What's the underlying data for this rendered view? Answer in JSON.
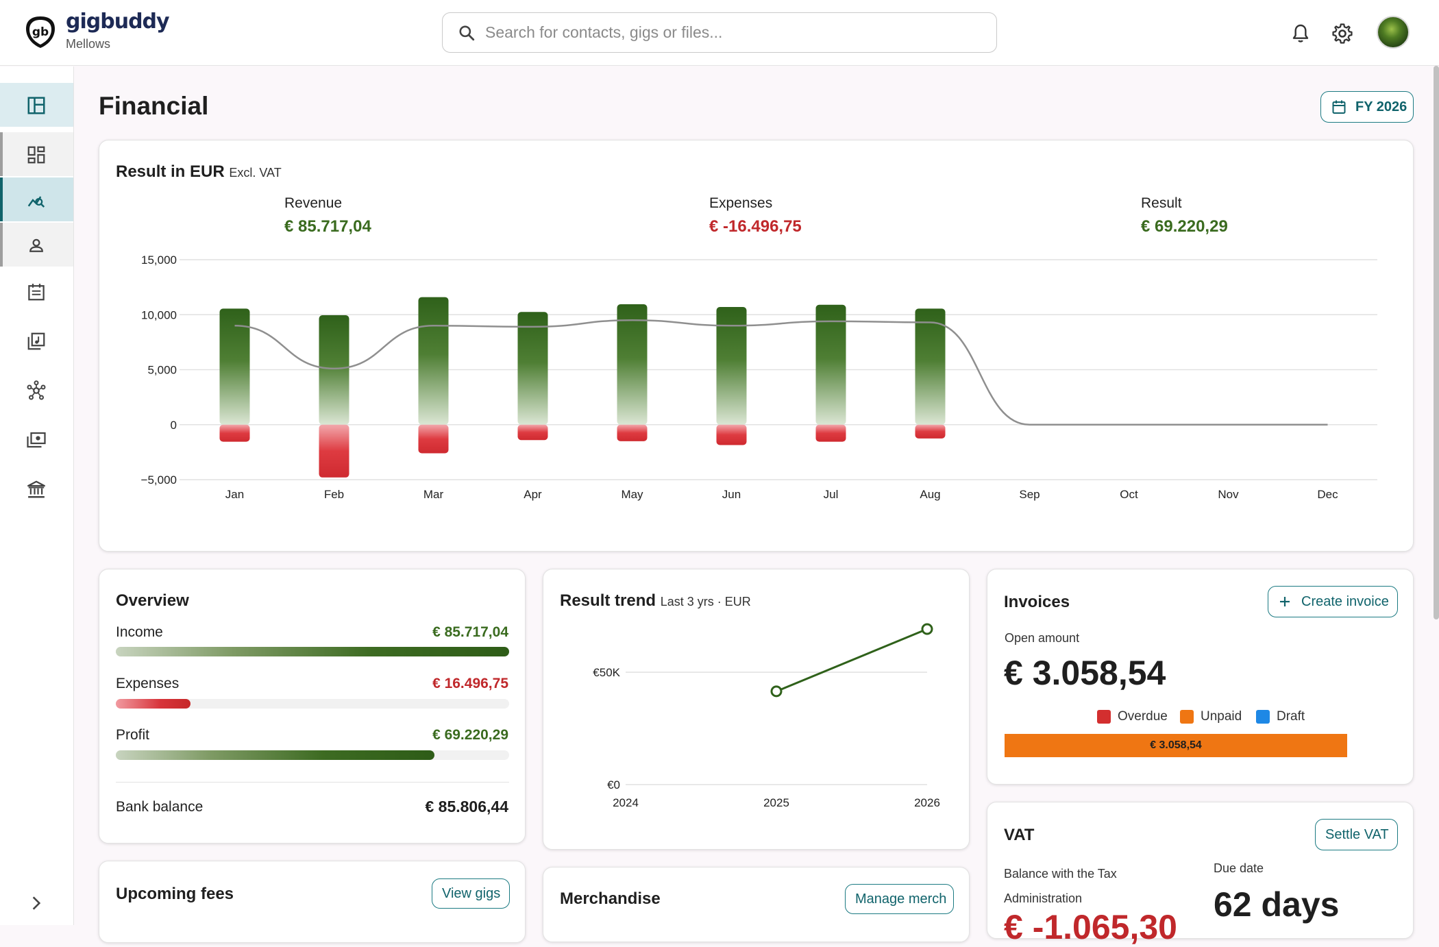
{
  "app": {
    "brand": "gigbuddy",
    "org": "Mellows"
  },
  "search": {
    "placeholder": "Search for contacts, gigs or files..."
  },
  "header": {
    "icons": [
      "bell-icon",
      "gear-icon",
      "avatar"
    ]
  },
  "sidebar": {
    "items": [
      "dashboard-icon",
      "widgets-icon",
      "financial-icon",
      "contacts-icon",
      "calendar-icon",
      "music-library-icon",
      "network-icon",
      "merch-icon",
      "bank-icon"
    ]
  },
  "page": {
    "title": "Financial",
    "fy_label": "FY 2026"
  },
  "result": {
    "title": "Result in EUR",
    "subtitle": "Excl. VAT",
    "revenue_label": "Revenue",
    "revenue_value": "€ 85.717,04",
    "expenses_label": "Expenses",
    "expenses_value": "€ -16.496,75",
    "result_label": "Result",
    "result_value": "€ 69.220,29"
  },
  "chart_data": [
    {
      "type": "bar",
      "title": "Result in EUR",
      "categories": [
        "Jan",
        "Feb",
        "Mar",
        "Apr",
        "May",
        "Jun",
        "Jul",
        "Aug",
        "Sep",
        "Oct",
        "Nov",
        "Dec"
      ],
      "y_ticks": [
        15000,
        10000,
        5000,
        0,
        -5000
      ],
      "y_tick_labels": [
        "15,000",
        "10,000",
        "5,000",
        "0",
        "−5,000"
      ],
      "ylim": [
        -5000,
        15000
      ],
      "grid": true,
      "series": [
        {
          "name": "Revenue",
          "values": [
            10550,
            9950,
            11600,
            10250,
            10950,
            10700,
            10900,
            10550,
            0,
            0,
            0,
            0
          ]
        },
        {
          "name": "Expenses",
          "values": [
            -1550,
            -4800,
            -2600,
            -1400,
            -1500,
            -1850,
            -1550,
            -1250,
            0,
            0,
            0,
            0
          ]
        },
        {
          "name": "Result",
          "type": "line",
          "values": [
            9000,
            5100,
            9000,
            8900,
            9500,
            9000,
            9400,
            9300,
            0,
            0,
            0,
            0
          ]
        }
      ]
    },
    {
      "type": "line",
      "title": "Result trend",
      "subtitle": "Last 3 yrs · EUR",
      "categories": [
        "2024",
        "2025",
        "2026"
      ],
      "y_ticks": [
        0,
        50000
      ],
      "y_tick_labels": [
        "€0",
        "€50K"
      ],
      "ylim": [
        0,
        60000
      ],
      "series": [
        {
          "values": [
            null,
            41500,
            69220.29
          ]
        }
      ]
    }
  ],
  "overview": {
    "title": "Overview",
    "income_label": "Income",
    "income_value": "€ 85.717,04",
    "income_fraction": 1.0,
    "expenses_label": "Expenses",
    "expenses_value": "€ 16.496,75",
    "expenses_fraction": 0.19,
    "profit_label": "Profit",
    "profit_value": "€ 69.220,29",
    "profit_fraction": 0.81,
    "bank_label": "Bank balance",
    "bank_value": "€ 85.806,44"
  },
  "trend": {
    "title": "Result trend",
    "subtitle": "Last 3 yrs · EUR"
  },
  "invoices": {
    "title": "Invoices",
    "create_label": "Create invoice",
    "open_label": "Open amount",
    "open_value": "€ 3.058,54",
    "legend": [
      {
        "label": "Overdue",
        "color": "#d32f2f"
      },
      {
        "label": "Unpaid",
        "color": "#ef7613"
      },
      {
        "label": "Draft",
        "color": "#1e88e5"
      }
    ],
    "bar_label": "€ 3.058,54",
    "bar_fraction": 1.0
  },
  "vat": {
    "title": "VAT",
    "settle_label": "Settle VAT",
    "balance_label": "Balance with the Tax Administration",
    "balance_value": "€ -1.065,30",
    "due_label": "Due date",
    "due_value": "62 days"
  },
  "fees": {
    "title": "Upcoming fees",
    "view_label": "View gigs"
  },
  "merch": {
    "title": "Merchandise",
    "manage_label": "Manage merch"
  },
  "colors": {
    "accent": "#10636b",
    "positive": "#3a6b1f",
    "negative": "#c0282b"
  }
}
